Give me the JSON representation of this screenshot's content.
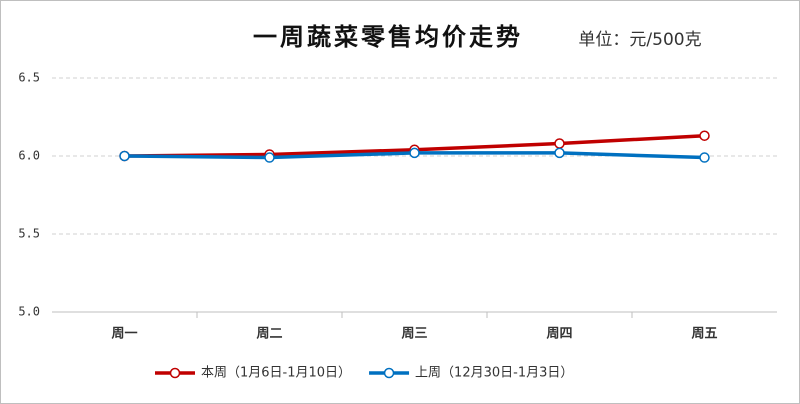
{
  "chart_data": {
    "type": "line",
    "title": "一周蔬菜零售均价走势",
    "subtitle": "单位：元/500克",
    "categories": [
      "周一",
      "周二",
      "周三",
      "周四",
      "周五"
    ],
    "series": [
      {
        "name": "本周（1月6日-1月10日）",
        "color": "#c00000",
        "values": [
          6.0,
          6.01,
          6.04,
          6.08,
          6.13
        ]
      },
      {
        "name": "上周（12月30日-1月3日）",
        "color": "#0070c0",
        "values": [
          6.0,
          5.99,
          6.02,
          6.02,
          5.99
        ]
      }
    ],
    "ylim": [
      5.0,
      6.5
    ],
    "yticks": [
      {
        "value": 5.0,
        "label": "5.0"
      },
      {
        "value": 5.5,
        "label": "5.5"
      },
      {
        "value": 6.0,
        "label": "6.0"
      },
      {
        "value": 6.5,
        "label": "6.5"
      }
    ],
    "grid": true,
    "legend": "bottom"
  }
}
